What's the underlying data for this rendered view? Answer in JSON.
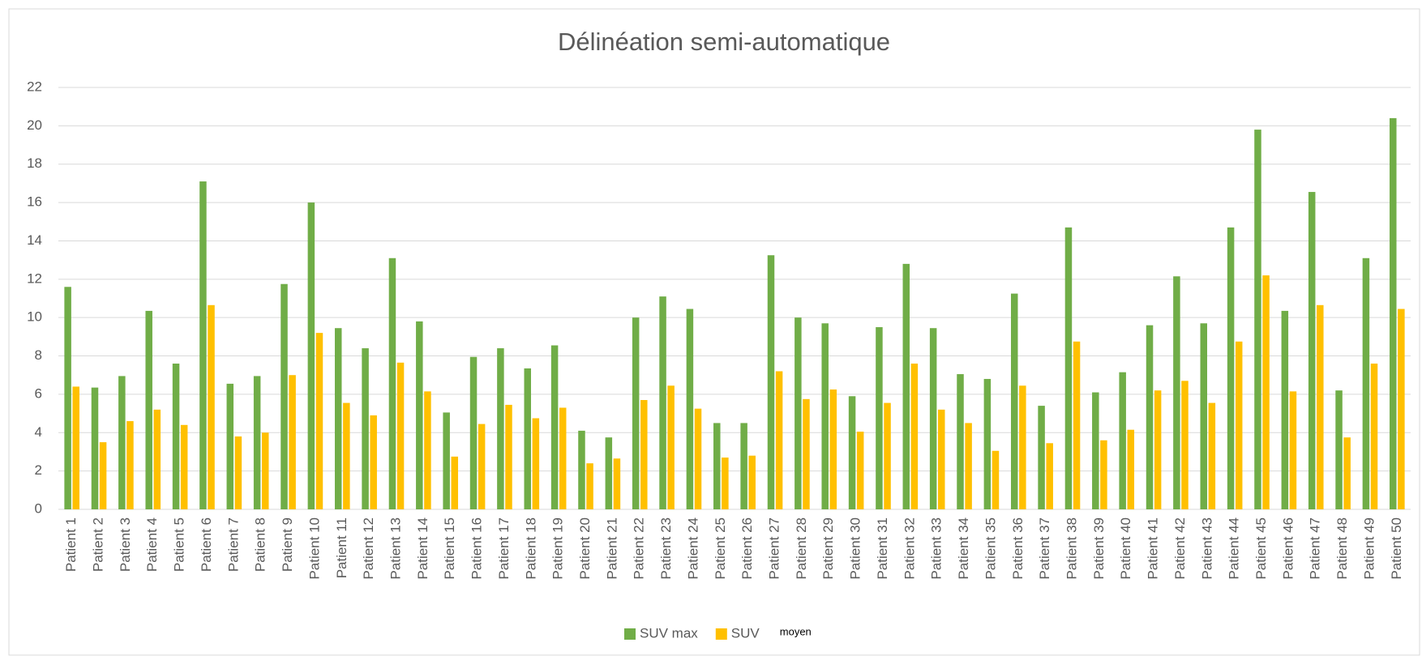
{
  "chart_data": {
    "type": "bar",
    "title": "Délinéation semi-automatique",
    "categories": [
      "Patient 1",
      "Patient 2",
      "Patient 3",
      "Patient 4",
      "Patient 5",
      "Patient 6",
      "Patient 7",
      "Patient 8",
      "Patient 9",
      "Patient 10",
      "Patient 11",
      "Patient 12",
      "Patient 13",
      "Patient 14",
      "Patient 15",
      "Patient 16",
      "Patient 17",
      "Patient 18",
      "Patient 19",
      "Patient 20",
      "Patient 21",
      "Patient 22",
      "Patient 23",
      "Patient 24",
      "Patient 25",
      "Patient 26",
      "Patient 27",
      "Patient 28",
      "Patient 29",
      "Patient 30",
      "Patient 31",
      "Patient 32",
      "Patient 33",
      "Patient 34",
      "Patient 35",
      "Patient 36",
      "Patient 37",
      "Patient 38",
      "Patient 39",
      "Patient 40",
      "Patient 41",
      "Patient 42",
      "Patient 43",
      "Patient 44",
      "Patient 45",
      "Patient 46",
      "Patient 47",
      "Patient 48",
      "Patient 49",
      "Patient 50"
    ],
    "series": [
      {
        "name": "SUV max",
        "color": "#70ad47",
        "values": [
          11.6,
          6.35,
          6.95,
          10.35,
          7.6,
          17.1,
          6.55,
          6.95,
          11.75,
          16.0,
          9.45,
          8.4,
          13.1,
          9.8,
          5.05,
          7.95,
          8.4,
          7.35,
          8.55,
          4.1,
          3.75,
          10.0,
          11.1,
          10.45,
          4.5,
          4.5,
          13.25,
          10.0,
          9.7,
          5.9,
          9.5,
          12.8,
          9.45,
          7.05,
          6.8,
          11.25,
          5.4,
          14.7,
          6.1,
          7.15,
          9.6,
          12.15,
          9.7,
          14.7,
          19.8,
          10.35,
          16.55,
          6.2,
          13.1,
          20.4
        ]
      },
      {
        "name": "SUV",
        "color": "#ffc000",
        "values": [
          6.4,
          3.5,
          4.6,
          5.2,
          4.4,
          10.65,
          3.8,
          4.0,
          7.0,
          9.2,
          5.55,
          4.9,
          7.65,
          6.15,
          2.75,
          4.45,
          5.45,
          4.75,
          5.3,
          2.4,
          2.65,
          5.7,
          6.45,
          5.25,
          2.7,
          2.8,
          7.2,
          5.75,
          6.25,
          4.05,
          5.55,
          7.6,
          5.2,
          4.5,
          3.05,
          6.45,
          3.45,
          8.75,
          3.6,
          4.15,
          6.2,
          6.7,
          5.55,
          8.75,
          12.2,
          6.15,
          10.65,
          3.75,
          7.6,
          10.45
        ]
      }
    ],
    "legend_note": "moyen",
    "ylim": [
      0,
      22
    ],
    "yticks": [
      0,
      2,
      4,
      6,
      8,
      10,
      12,
      14,
      16,
      18,
      20,
      22
    ],
    "grid": true,
    "legend": "bottom"
  }
}
